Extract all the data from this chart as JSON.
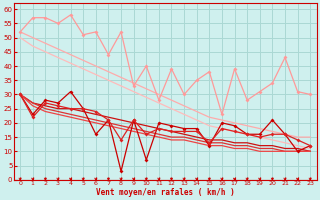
{
  "background_color": "#cff0ee",
  "grid_color": "#aad8d4",
  "xlabel": "Vent moyen/en rafales ( km/h )",
  "xlabel_color": "#cc0000",
  "tick_color": "#cc0000",
  "xlim": [
    -0.5,
    23.5
  ],
  "ylim": [
    0,
    62
  ],
  "yticks": [
    0,
    5,
    10,
    15,
    20,
    25,
    30,
    35,
    40,
    45,
    50,
    55,
    60
  ],
  "xticks": [
    0,
    1,
    2,
    3,
    4,
    5,
    6,
    7,
    8,
    9,
    10,
    11,
    12,
    13,
    14,
    15,
    16,
    17,
    18,
    19,
    20,
    21,
    22,
    23
  ],
  "pink_jagged": [
    52,
    57,
    57,
    55,
    58,
    51,
    52,
    44,
    52,
    33,
    40,
    28,
    39,
    30,
    35,
    38,
    23,
    39,
    28,
    31,
    34,
    43,
    31,
    30
  ],
  "pink_jagged_color": "#ff9999",
  "pink_trend1": [
    52,
    50,
    48,
    46,
    44,
    42,
    40,
    38,
    36,
    34,
    32,
    30,
    28,
    26,
    24,
    22,
    21,
    20,
    19,
    18,
    17,
    16,
    15,
    15
  ],
  "pink_trend1_color": "#ffaaaa",
  "pink_trend2": [
    50,
    47,
    45,
    43,
    41,
    39,
    37,
    35,
    33,
    31,
    29,
    27,
    25,
    23,
    21,
    19,
    18,
    17,
    16,
    15,
    14,
    13,
    12,
    11
  ],
  "pink_trend2_color": "#ffbbbb",
  "red_jagged1": [
    30,
    23,
    28,
    27,
    31,
    25,
    16,
    21,
    3,
    21,
    7,
    20,
    19,
    18,
    18,
    12,
    20,
    19,
    16,
    16,
    21,
    16,
    10,
    12
  ],
  "red_jagged1_color": "#cc0000",
  "red_jagged2": [
    30,
    22,
    27,
    26,
    25,
    25,
    24,
    21,
    14,
    21,
    16,
    18,
    17,
    17,
    17,
    13,
    18,
    17,
    16,
    15,
    16,
    16,
    14,
    12
  ],
  "red_jagged2_color": "#dd2222",
  "red_trend1": [
    30,
    27,
    26,
    25,
    25,
    24,
    23,
    22,
    21,
    20,
    19,
    18,
    17,
    16,
    15,
    14,
    14,
    13,
    13,
    12,
    12,
    11,
    11,
    10
  ],
  "red_trend1_color": "#cc1111",
  "red_trend2": [
    30,
    27,
    25,
    24,
    23,
    22,
    21,
    20,
    19,
    18,
    17,
    16,
    15,
    15,
    14,
    13,
    13,
    12,
    12,
    11,
    11,
    10,
    10,
    10
  ],
  "red_trend2_color": "#dd3333",
  "red_trend3": [
    30,
    26,
    24,
    23,
    22,
    21,
    20,
    19,
    18,
    17,
    16,
    15,
    14,
    14,
    13,
    12,
    12,
    11,
    11,
    10,
    10,
    10,
    10,
    10
  ],
  "red_trend3_color": "#ee4444"
}
